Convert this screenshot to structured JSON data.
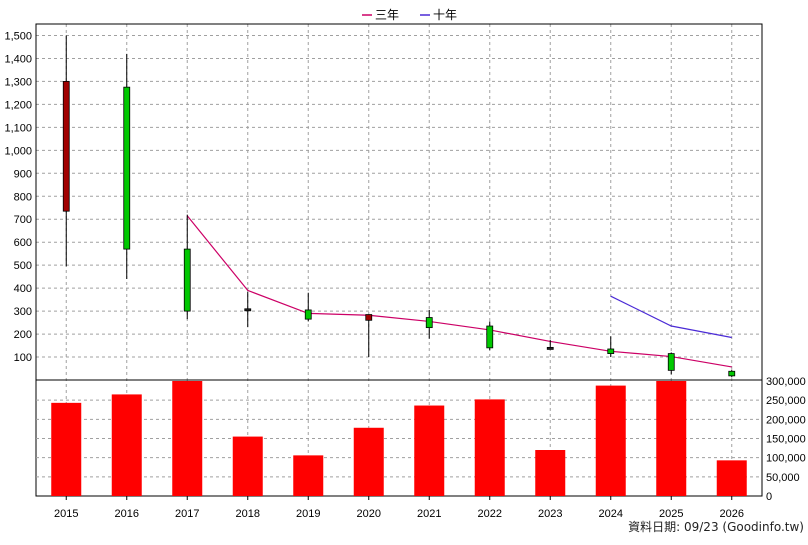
{
  "legend": {
    "items": [
      {
        "label": "三年",
        "color": "#cc0066"
      },
      {
        "label": "十年",
        "color": "#4b2bd6"
      }
    ]
  },
  "footer": {
    "text": "資料日期: 09/23 (Goodinfo.tw)"
  },
  "chart_data": [
    {
      "type": "candlestick",
      "title": "",
      "x": [
        "2015",
        "2016",
        "2017",
        "2018",
        "2019",
        "2020",
        "2021",
        "2022",
        "2023",
        "2024",
        "2025",
        "2026"
      ],
      "ylim": [
        0,
        1550
      ],
      "y_ticks": [
        100,
        200,
        300,
        400,
        500,
        600,
        700,
        800,
        900,
        1000,
        1100,
        1200,
        1300,
        1400,
        1500
      ],
      "y_tick_labels": [
        "100",
        "200",
        "300",
        "400",
        "500",
        "600",
        "700",
        "800",
        "900",
        "1,000",
        "1,100",
        "1,200",
        "1,300",
        "1,400",
        "1,500"
      ],
      "grid": true,
      "candles": [
        {
          "x": "2015",
          "open": 1300,
          "close": 735,
          "high": 1500,
          "low": 495,
          "color": "#a10000"
        },
        {
          "x": "2016",
          "open": 570,
          "close": 1275,
          "high": 1420,
          "low": 440,
          "color": "#00c800"
        },
        {
          "x": "2017",
          "open": 300,
          "close": 570,
          "high": 720,
          "low": 265,
          "color": "#00c800"
        },
        {
          "x": "2018",
          "open": 310,
          "close": 305,
          "high": 385,
          "low": 230,
          "color": "#222222"
        },
        {
          "x": "2019",
          "open": 265,
          "close": 305,
          "high": 380,
          "low": 255,
          "color": "#00c800"
        },
        {
          "x": "2020",
          "open": 285,
          "close": 260,
          "high": 285,
          "low": 100,
          "color": "#a10000"
        },
        {
          "x": "2021",
          "open": 228,
          "close": 272,
          "high": 305,
          "low": 180,
          "color": "#00c800"
        },
        {
          "x": "2022",
          "open": 140,
          "close": 235,
          "high": 255,
          "low": 130,
          "color": "#00c800"
        },
        {
          "x": "2023",
          "open": 142,
          "close": 140,
          "high": 175,
          "low": 135,
          "color": "#222222"
        },
        {
          "x": "2024",
          "open": 115,
          "close": 135,
          "high": 190,
          "low": 100,
          "color": "#00c800"
        },
        {
          "x": "2025",
          "open": 42,
          "close": 115,
          "high": 120,
          "low": 25,
          "color": "#00c800"
        },
        {
          "x": "2026",
          "open": 18,
          "close": 38,
          "high": 45,
          "low": 12,
          "color": "#00c800"
        }
      ],
      "series": [
        {
          "name": "三年",
          "color": "#cc0066",
          "points": [
            [
              "2017",
              715
            ],
            [
              "2018",
              390
            ],
            [
              "2019",
              290
            ],
            [
              "2020",
              282
            ],
            [
              "2021",
              255
            ],
            [
              "2022",
              218
            ],
            [
              "2023",
              168
            ],
            [
              "2024",
              125
            ],
            [
              "2025",
              102
            ],
            [
              "2026",
              57
            ]
          ]
        },
        {
          "name": "十年",
          "color": "#4b2bd6",
          "points": [
            [
              "2024",
              365
            ],
            [
              "2025",
              235
            ],
            [
              "2026",
              185
            ]
          ]
        }
      ]
    },
    {
      "type": "bar",
      "title": "",
      "categories": [
        "2015",
        "2016",
        "2017",
        "2018",
        "2019",
        "2020",
        "2021",
        "2022",
        "2023",
        "2024",
        "2025",
        "2026"
      ],
      "values": [
        243000,
        265000,
        302000,
        155000,
        106000,
        178000,
        236000,
        252000,
        120000,
        288000,
        304000,
        93000
      ],
      "ylim": [
        0,
        300000
      ],
      "y_ticks": [
        0,
        50000,
        100000,
        150000,
        200000,
        250000,
        300000
      ],
      "y_tick_labels": [
        "0",
        "50,000",
        "100,000",
        "150,000",
        "200,000",
        "250,000",
        "300,000"
      ],
      "bar_color": "#ff0000",
      "grid": true
    }
  ]
}
